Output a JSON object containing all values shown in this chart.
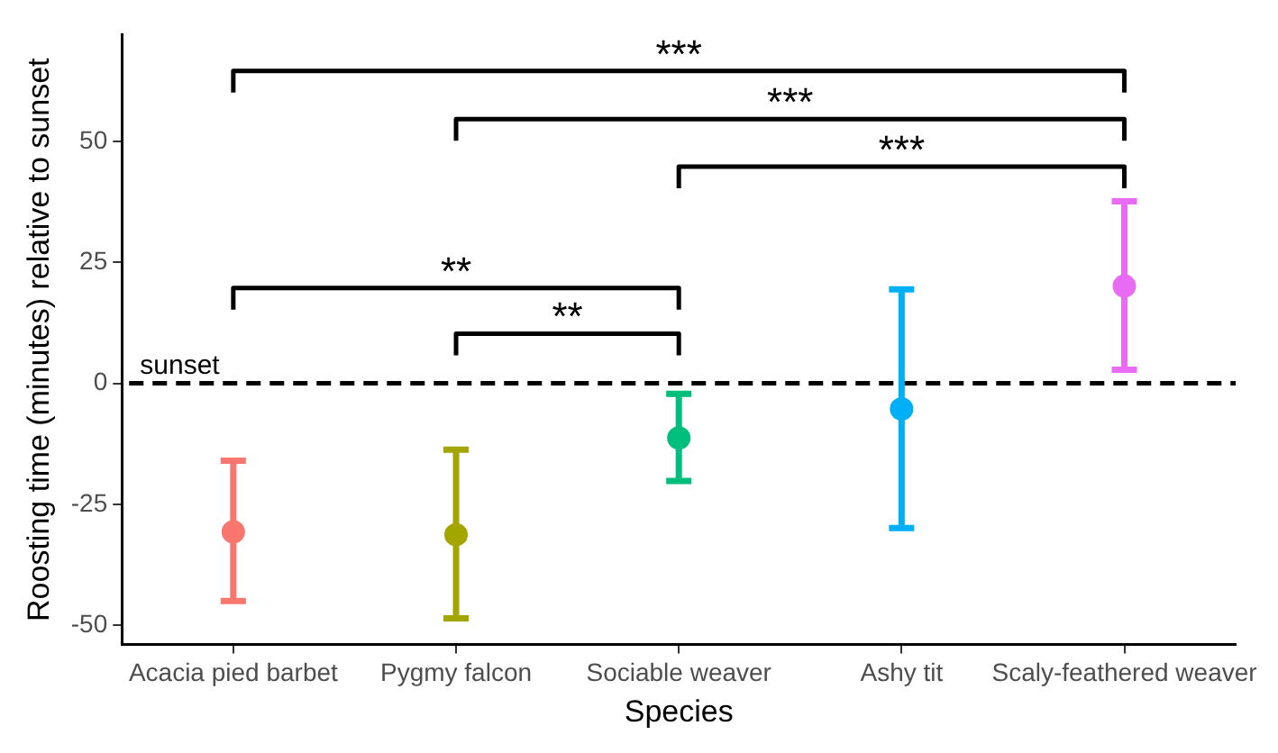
{
  "chart_data": {
    "type": "scatter",
    "xlabel": "Species",
    "ylabel": "Roosting time (minutes) relative to sunset",
    "categories": [
      "Acacia pied barbet",
      "Pygmy falcon",
      "Sociable weaver",
      "Ashy tit",
      "Scaly-feathered weaver"
    ],
    "values": [
      -30.7,
      -31.3,
      -11.3,
      -5.3,
      20.1
    ],
    "errors": [
      [
        -45,
        -16
      ],
      [
        -48.6,
        -13.7
      ],
      [
        -20.2,
        -2.2
      ],
      [
        -29.9,
        19.4
      ],
      [
        2.8,
        37.6
      ]
    ],
    "colors": [
      "#f8766d",
      "#a3a500",
      "#00bf7d",
      "#00b0f6",
      "#e76bf3"
    ],
    "marker": "circle",
    "ylim": [
      -54,
      72
    ],
    "yticks": [
      -50,
      -25,
      0,
      25,
      50
    ],
    "grid": false,
    "legend": false,
    "ref_lines": [
      {
        "axis": "y",
        "value": 0,
        "label": "sunset",
        "color": "#000000",
        "line_style": "dashed"
      }
    ],
    "annotations": [
      "***",
      "***",
      "***",
      "**",
      "**"
    ]
  }
}
